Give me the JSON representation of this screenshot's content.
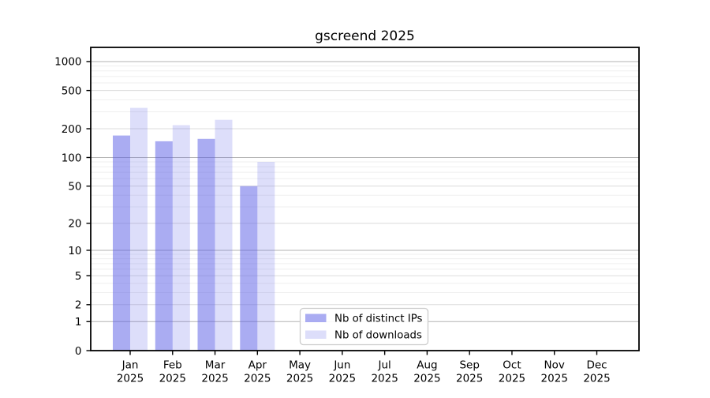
{
  "page": {
    "background": "#ffffff"
  },
  "chart_data": {
    "type": "bar",
    "title": "gscreend 2025",
    "x": [
      "Jan",
      "Feb",
      "Mar",
      "Apr",
      "May",
      "Jun",
      "Jul",
      "Aug",
      "Sep",
      "Oct",
      "Nov",
      "Dec"
    ],
    "x_year": "2025",
    "series": [
      {
        "name": "Nb of distinct IPs",
        "base_color": "#555AE6",
        "alpha": 0.5,
        "rendered_color": "#AAACF2",
        "values": [
          170,
          148,
          157,
          50,
          null,
          null,
          null,
          null,
          null,
          null,
          null,
          null
        ]
      },
      {
        "name": "Nb of downloads",
        "base_color": "#555AE6",
        "alpha": 0.2,
        "rendered_color": "#DDDEF9",
        "values": [
          330,
          218,
          248,
          90,
          null,
          null,
          null,
          null,
          null,
          null,
          null,
          null
        ]
      }
    ],
    "y_axis": {
      "scale": "log1p",
      "ticks": [
        0,
        1,
        2,
        5,
        10,
        20,
        50,
        100,
        200,
        500,
        1000
      ],
      "minor_ticks": [
        3,
        4,
        6,
        7,
        8,
        9,
        30,
        40,
        60,
        70,
        80,
        90,
        300,
        400,
        600,
        700,
        800,
        900
      ],
      "max": 1400
    },
    "grid": {
      "major_pow10_color": "#B3B3B3",
      "major_color": "#DCDCDC",
      "minor_color": "#EFEFEF"
    },
    "legend": {
      "position": "bottom-center",
      "frame_color": "#CCCCCC",
      "entries": [
        "Nb of distinct IPs",
        "Nb of downloads"
      ]
    }
  }
}
